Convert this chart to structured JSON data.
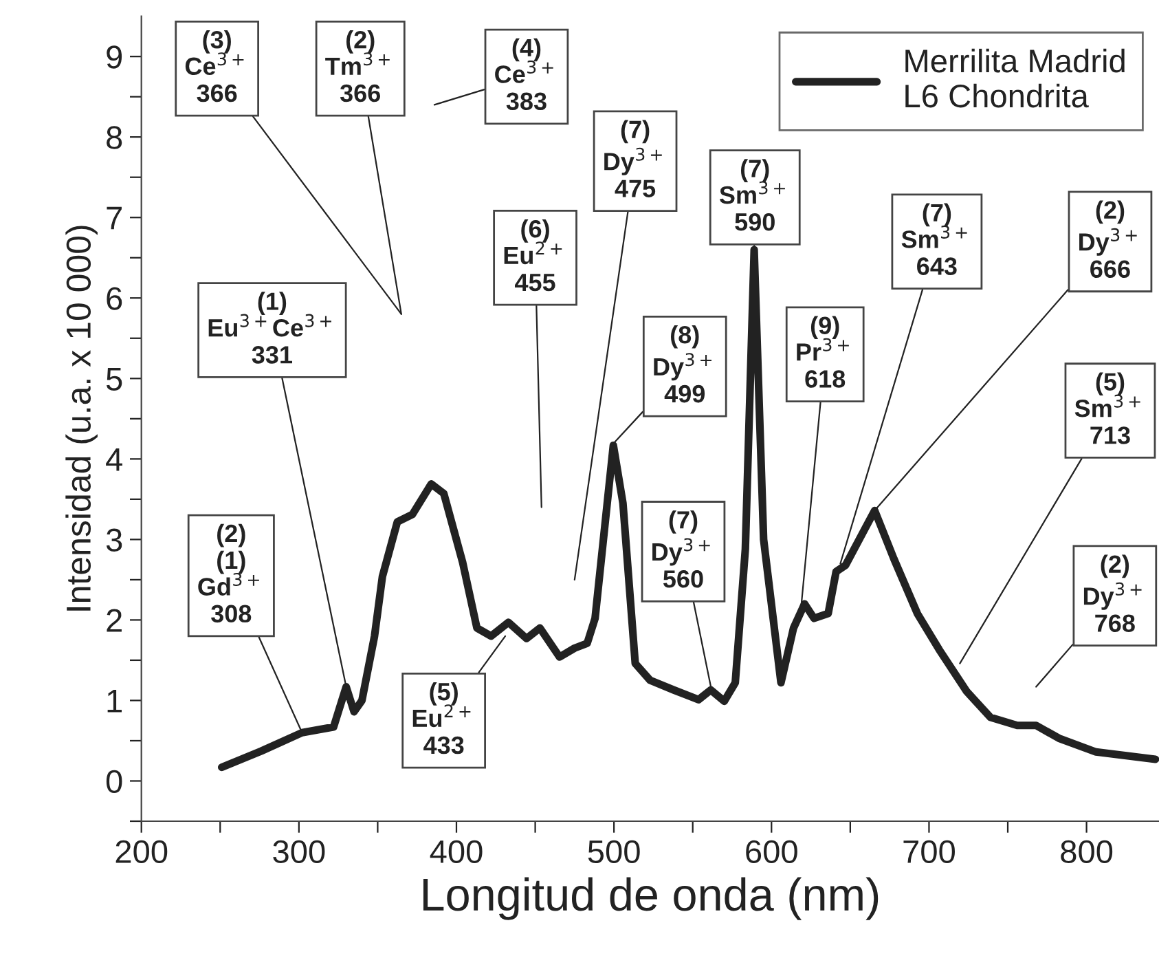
{
  "chart_data": {
    "type": "line",
    "xlabel": "Longitud de onda (nm)",
    "ylabel": "Intensidad (u.a. x 10 000)",
    "x": [
      251,
      276,
      302,
      322,
      330,
      335,
      340,
      348,
      353,
      362.5,
      372,
      384,
      392,
      404,
      413,
      422,
      433,
      444.5,
      453,
      465.5,
      475,
      483,
      488,
      499.6,
      505.7,
      513.5,
      523,
      538,
      553.7,
      561.5,
      570,
      577,
      583.4,
      589,
      595,
      606,
      614,
      621,
      627,
      636,
      641,
      647,
      665.5,
      677.7,
      692.6,
      706.5,
      724,
      739,
      756,
      768,
      782.5,
      806,
      843.7
    ],
    "series": [
      {
        "name": "Merrilita Madrid\nL6 Chondrita",
        "color": "#222222",
        "values": [
          0.17,
          0.37,
          0.6,
          0.67,
          1.17,
          0.86,
          1.0,
          1.8,
          2.54,
          3.22,
          3.31,
          3.69,
          3.57,
          2.71,
          1.9,
          1.8,
          1.97,
          1.77,
          1.9,
          1.54,
          1.65,
          1.71,
          2.02,
          4.17,
          3.45,
          1.46,
          1.25,
          1.13,
          1.01,
          1.13,
          0.99,
          1.22,
          2.88,
          6.6,
          3.0,
          1.22,
          1.9,
          2.2,
          2.02,
          2.08,
          2.6,
          2.68,
          3.36,
          2.76,
          2.08,
          1.63,
          1.11,
          0.79,
          0.69,
          0.69,
          0.53,
          0.36,
          0.27
        ]
      }
    ],
    "xlim": [
      200,
      846
    ],
    "xticks": [
      200,
      {
        "value": 250,
        "label": null
      },
      300,
      {
        "value": 350,
        "label": null
      },
      400,
      {
        "value": 450,
        "label": null
      },
      500,
      {
        "value": 550,
        "label": null
      },
      600,
      {
        "value": 650,
        "label": null
      },
      700,
      {
        "value": 750,
        "label": null
      },
      800
    ],
    "ylim": [
      -0.5,
      9.5
    ],
    "yticks": [
      {
        "value": -0.5,
        "label": null
      },
      0,
      {
        "value": 0.5,
        "label": null
      },
      1,
      {
        "value": 1.5,
        "label": null
      },
      2,
      {
        "value": 2.5,
        "label": null
      },
      3,
      {
        "value": 3.5,
        "label": null
      },
      4,
      {
        "value": 4.5,
        "label": null
      },
      5,
      {
        "value": 5.5,
        "label": null
      },
      6,
      {
        "value": 6.5,
        "label": null
      },
      7,
      {
        "value": 7.5,
        "label": null
      },
      8,
      {
        "value": 8.5,
        "label": null
      },
      9
    ],
    "grid": false,
    "legend": "top right",
    "line_style": "solid",
    "annotations": [
      {
        "text": "(2)\n(1)\nGd$^{3+}$\n308",
        "x": 302,
        "y": 0.6
      },
      "(1)\nEu$^{3+}$Ce$^{3+}$\n331",
      "(3)\nCe$^{3+}$\n366",
      "(2)\nTm$^{3+}$\n366",
      "(4)\nCe$^{3+}$\n383",
      "(6)\nEu$^{2+}$\n455",
      "(7)\nDy$^{3+}$\n475",
      {
        "text": "(8)\nDy$^{3+}$\n499",
        "x": 500,
        "y": 4.2
      },
      {
        "text": "(5)\nEu$^{2+}$\n433",
        "x": 431,
        "y": 1.8
      },
      {
        "text": "(7)\nDy$^{3+}$\n560",
        "x": 561.5,
        "y": 1.17
      },
      {
        "text": "(7)\nSm$^{3+}$\n590",
        "x": 589,
        "y": 6.6
      },
      {
        "text": "(9)\nPr$^{3+}$\n618",
        "x": 619,
        "y": 2.2
      },
      {
        "text": "(7)\nSm$^{3+}$\n643",
        "x": 643.7,
        "y": 2.7
      },
      {
        "text": "(2)\nDy$^{3+}$\n666",
        "x": 665.5,
        "y": 3.36
      },
      {
        "text": "(5)\nSm$^{3+}$\n713",
        "x": 719.6,
        "y": 1.46
      },
      "(2)\nDy$^{3+}$\n768"
    ]
  }
}
